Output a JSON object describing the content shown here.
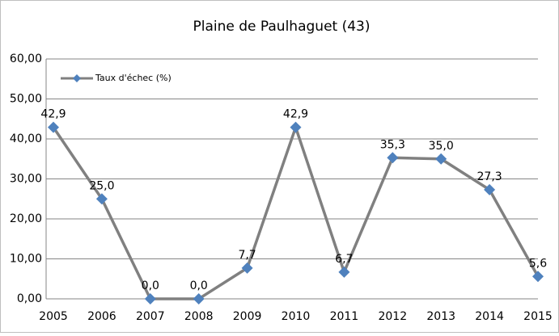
{
  "chart_data": {
    "type": "line",
    "title": "Plaine de Paulhaguet (43)",
    "categories": [
      "2005",
      "2006",
      "2007",
      "2008",
      "2009",
      "2010",
      "2011",
      "2012",
      "2013",
      "2014",
      "2015"
    ],
    "series": [
      {
        "name": "Taux d'échec (%)",
        "color": "#808080",
        "marker_color": "#4f81bd",
        "values": [
          42.9,
          25.0,
          0,
          0,
          7.7,
          42.9,
          6.7,
          35.3,
          35.0,
          27.3,
          5.6
        ],
        "value_labels": [
          "42,9",
          "25,0",
          "0,0",
          "0,0",
          "7,7",
          "42,9",
          "6,7",
          "35,3",
          "35,0",
          "27,3",
          "5,6"
        ]
      }
    ],
    "ylim": [
      0,
      60
    ],
    "yticks": [
      {
        "value": 0,
        "label": "0,00"
      },
      {
        "value": 10,
        "label": "10,00"
      },
      {
        "value": 20,
        "label": "20,00"
      },
      {
        "value": 30,
        "label": "30,00"
      },
      {
        "value": 40,
        "label": "40,00"
      },
      {
        "value": 50,
        "label": "50,00"
      },
      {
        "value": 60,
        "label": "60,00"
      }
    ],
    "grid": true,
    "legend": "upper left"
  }
}
